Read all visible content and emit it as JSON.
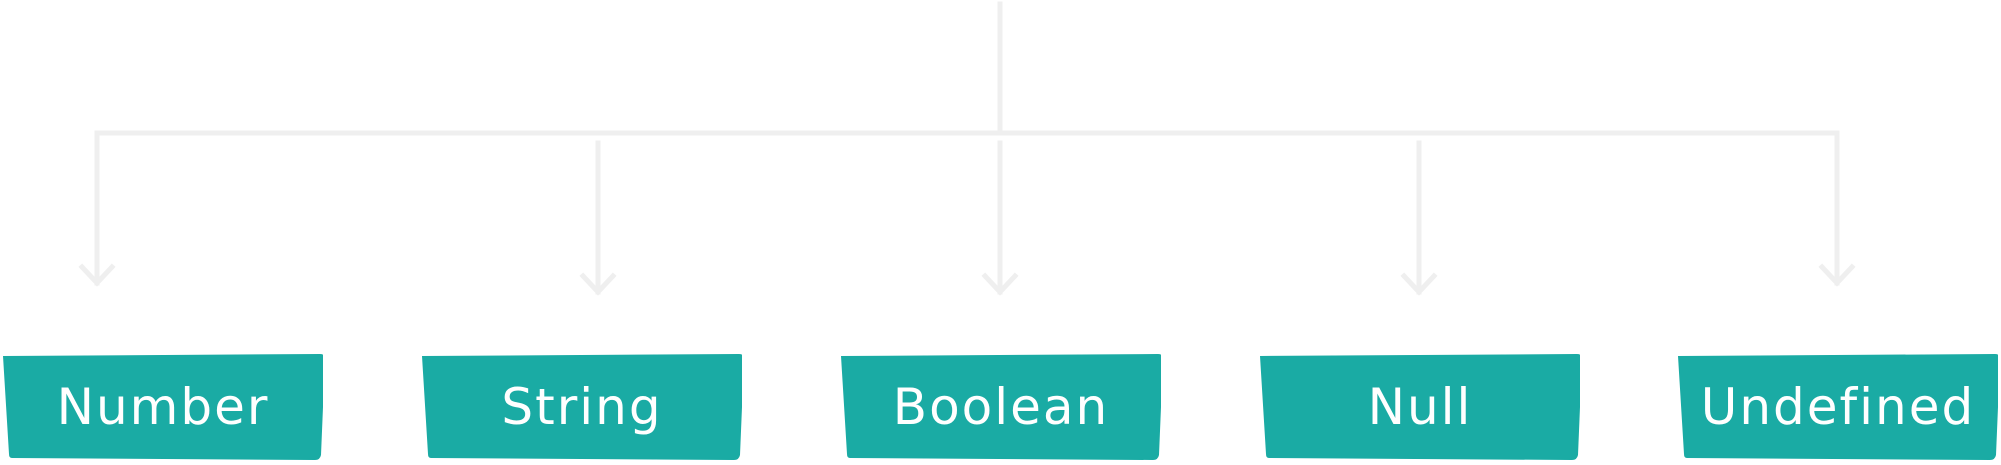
{
  "diagram": {
    "colors": {
      "connector": "#efefef",
      "node_fill": "#1aaba4",
      "label_text": "#ffffff",
      "background": "#ffffff"
    },
    "nodes": [
      {
        "label": "Number"
      },
      {
        "label": "String"
      },
      {
        "label": "Boolean"
      },
      {
        "label": "Null"
      },
      {
        "label": "Undefined"
      }
    ]
  }
}
